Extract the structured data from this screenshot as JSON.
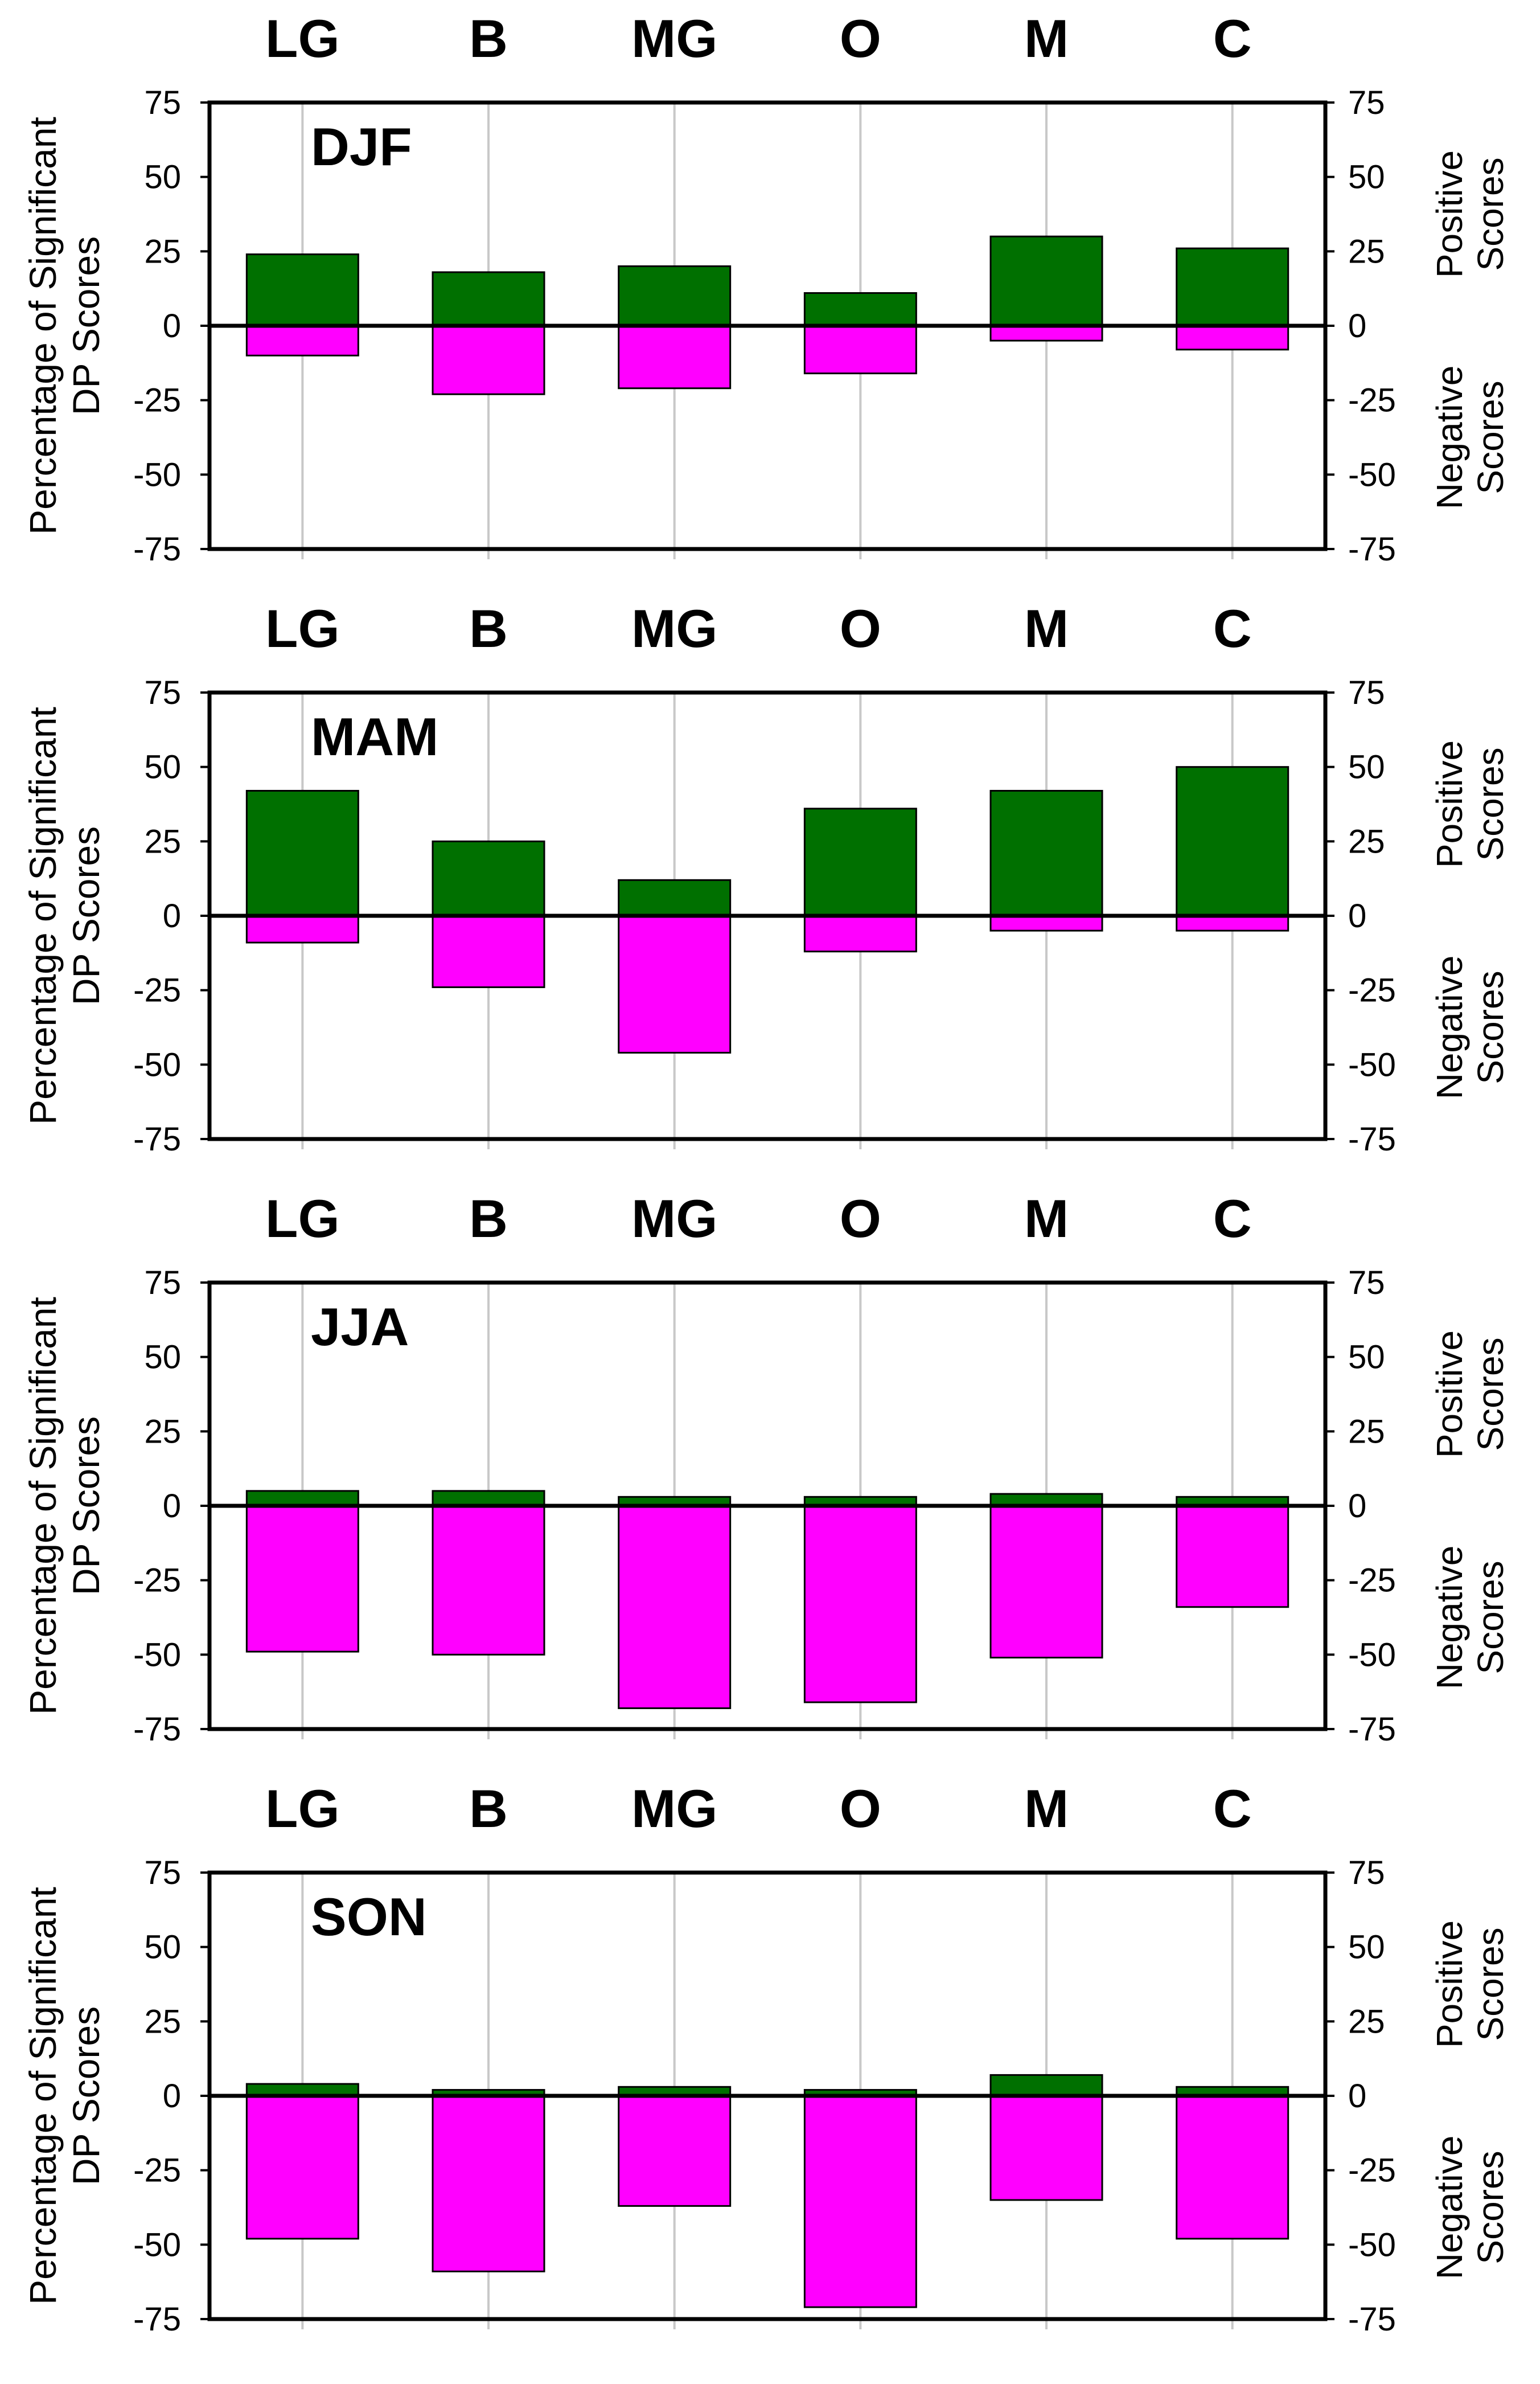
{
  "chart_data": [
    {
      "type": "bar",
      "title": "DJF",
      "categories": [
        "LG",
        "B",
        "MG",
        "O",
        "M",
        "C"
      ],
      "series": [
        {
          "name": "Positive Scores",
          "color": "#007000",
          "values": [
            24,
            18,
            20,
            11,
            30,
            26
          ]
        },
        {
          "name": "Negative Scores",
          "color": "#ff00ff",
          "values": [
            -10,
            -23,
            -21,
            -16,
            -5,
            -8
          ]
        }
      ],
      "ylabel": [
        "Percentage of Significant",
        "DP Scores"
      ],
      "right_labels": {
        "positive": "Positive Scores",
        "negative": "Negative Scores"
      },
      "ylim": [
        -75,
        75
      ],
      "yticks": [
        75,
        50,
        25,
        0,
        -25,
        -50,
        -75
      ],
      "grid": true,
      "legend": "none"
    },
    {
      "type": "bar",
      "title": "MAM",
      "categories": [
        "LG",
        "B",
        "MG",
        "O",
        "M",
        "C"
      ],
      "series": [
        {
          "name": "Positive Scores",
          "color": "#007000",
          "values": [
            42,
            25,
            12,
            36,
            42,
            50
          ]
        },
        {
          "name": "Negative Scores",
          "color": "#ff00ff",
          "values": [
            -9,
            -24,
            -46,
            -12,
            -5,
            -5
          ]
        }
      ],
      "ylabel": [
        "Percentage of Significant",
        "DP Scores"
      ],
      "right_labels": {
        "positive": "Positive Scores",
        "negative": "Negative Scores"
      },
      "ylim": [
        -75,
        75
      ],
      "yticks": [
        75,
        50,
        25,
        0,
        -25,
        -50,
        -75
      ],
      "grid": true,
      "legend": "none"
    },
    {
      "type": "bar",
      "title": "JJA",
      "categories": [
        "LG",
        "B",
        "MG",
        "O",
        "M",
        "C"
      ],
      "series": [
        {
          "name": "Positive Scores",
          "color": "#007000",
          "values": [
            5,
            5,
            3,
            3,
            4,
            3
          ]
        },
        {
          "name": "Negative Scores",
          "color": "#ff00ff",
          "values": [
            -49,
            -50,
            -68,
            -66,
            -51,
            -34
          ]
        }
      ],
      "ylabel": [
        "Percentage of Significant",
        "DP Scores"
      ],
      "right_labels": {
        "positive": "Positive Scores",
        "negative": "Negative Scores"
      },
      "ylim": [
        -75,
        75
      ],
      "yticks": [
        75,
        50,
        25,
        0,
        -25,
        -50,
        -75
      ],
      "grid": true,
      "legend": "none"
    },
    {
      "type": "bar",
      "title": "SON",
      "categories": [
        "LG",
        "B",
        "MG",
        "O",
        "M",
        "C"
      ],
      "series": [
        {
          "name": "Positive Scores",
          "color": "#007000",
          "values": [
            4,
            2,
            3,
            2,
            7,
            3
          ]
        },
        {
          "name": "Negative Scores",
          "color": "#ff00ff",
          "values": [
            -48,
            -59,
            -37,
            -71,
            -35,
            -48
          ]
        }
      ],
      "ylabel": [
        "Percentage of Significant",
        "DP Scores"
      ],
      "right_labels": {
        "positive": "Positive Scores",
        "negative": "Negative Scores"
      },
      "ylim": [
        -75,
        75
      ],
      "yticks": [
        75,
        50,
        25,
        0,
        -25,
        -50,
        -75
      ],
      "grid": true,
      "legend": "none"
    }
  ]
}
